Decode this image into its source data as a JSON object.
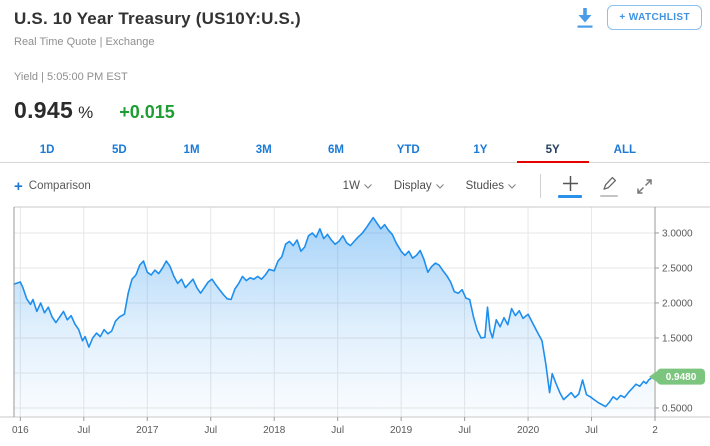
{
  "header": {
    "title": "U.S. 10 Year Treasury (US10Y:U.S.)",
    "subtitle": "Real Time Quote | Exchange",
    "watchlist_label": "+ WATCHLIST"
  },
  "quote": {
    "meta": "Yield | 5:05:00 PM EST",
    "price": "0.945",
    "unit": "%",
    "change": "+0.015"
  },
  "range_tabs": {
    "items": [
      "1D",
      "5D",
      "1M",
      "3M",
      "6M",
      "YTD",
      "1Y",
      "5Y",
      "ALL"
    ],
    "selected": "5Y"
  },
  "toolbar": {
    "comparison_plus": "+",
    "comparison_label": "Comparison",
    "interval_label": "1W",
    "display_label": "Display",
    "studies_label": "Studies",
    "tool_icons": [
      "crosshair-icon",
      "pencil-icon",
      "expand-icon"
    ]
  },
  "colors": {
    "accent_blue": "#1a7ad6",
    "line_blue": "#1f8fee",
    "tab_red": "#e60000",
    "change_green": "#1e9e32",
    "badge_green": "#7cc57e",
    "grid": "#e7e7e7",
    "axis_border_dark": "#9a9a9a",
    "axis_border_light": "#c9c9c9",
    "axis_text": "#595959"
  },
  "chart_data": {
    "type": "area",
    "title": "U.S. 10 Year Treasury yield, 5-year weekly chart",
    "x_domain": [
      2015.95,
      2021.0
    ],
    "y_domain": [
      0.371,
      3.371
    ],
    "grid": true,
    "legend": "none",
    "x_ticks": [
      {
        "year": 2016.0,
        "label": "016"
      },
      {
        "year": 2016.5,
        "label": "Jul"
      },
      {
        "year": 2017.0,
        "label": "2017"
      },
      {
        "year": 2017.5,
        "label": "Jul"
      },
      {
        "year": 2018.0,
        "label": "2018"
      },
      {
        "year": 2018.5,
        "label": "Jul"
      },
      {
        "year": 2019.0,
        "label": "2019"
      },
      {
        "year": 2019.5,
        "label": "Jul"
      },
      {
        "year": 2020.0,
        "label": "2020"
      },
      {
        "year": 2020.5,
        "label": "Jul"
      },
      {
        "year": 2021.0,
        "label": "2"
      }
    ],
    "y_ticks": [
      {
        "value": 3.0,
        "label": "3.0000"
      },
      {
        "value": 2.5,
        "label": "2.5000"
      },
      {
        "value": 2.0,
        "label": "2.0000"
      },
      {
        "value": 1.5,
        "label": "1.5000"
      },
      {
        "value": 1.0,
        "label": ""
      },
      {
        "value": 0.5,
        "label": "0.5000"
      }
    ],
    "last_price": {
      "value": 0.948,
      "label": "0.9480"
    },
    "series": [
      {
        "name": "US10Y yield",
        "points": [
          [
            2015.95,
            2.27
          ],
          [
            2016.0,
            2.3
          ],
          [
            2016.02,
            2.22
          ],
          [
            2016.05,
            2.06
          ],
          [
            2016.08,
            1.98
          ],
          [
            2016.1,
            2.05
          ],
          [
            2016.13,
            1.88
          ],
          [
            2016.16,
            2.0
          ],
          [
            2016.19,
            1.86
          ],
          [
            2016.22,
            1.94
          ],
          [
            2016.25,
            1.8
          ],
          [
            2016.28,
            1.72
          ],
          [
            2016.31,
            1.8
          ],
          [
            2016.34,
            1.88
          ],
          [
            2016.37,
            1.76
          ],
          [
            2016.4,
            1.82
          ],
          [
            2016.43,
            1.7
          ],
          [
            2016.46,
            1.62
          ],
          [
            2016.49,
            1.46
          ],
          [
            2016.51,
            1.52
          ],
          [
            2016.54,
            1.37
          ],
          [
            2016.57,
            1.5
          ],
          [
            2016.6,
            1.57
          ],
          [
            2016.63,
            1.52
          ],
          [
            2016.66,
            1.62
          ],
          [
            2016.69,
            1.56
          ],
          [
            2016.72,
            1.6
          ],
          [
            2016.75,
            1.74
          ],
          [
            2016.78,
            1.8
          ],
          [
            2016.82,
            1.84
          ],
          [
            2016.85,
            2.14
          ],
          [
            2016.88,
            2.34
          ],
          [
            2016.91,
            2.4
          ],
          [
            2016.94,
            2.54
          ],
          [
            2016.97,
            2.6
          ],
          [
            2017.0,
            2.44
          ],
          [
            2017.03,
            2.4
          ],
          [
            2017.06,
            2.47
          ],
          [
            2017.09,
            2.42
          ],
          [
            2017.12,
            2.5
          ],
          [
            2017.15,
            2.6
          ],
          [
            2017.18,
            2.52
          ],
          [
            2017.21,
            2.38
          ],
          [
            2017.24,
            2.28
          ],
          [
            2017.27,
            2.34
          ],
          [
            2017.3,
            2.22
          ],
          [
            2017.33,
            2.28
          ],
          [
            2017.36,
            2.34
          ],
          [
            2017.39,
            2.22
          ],
          [
            2017.42,
            2.14
          ],
          [
            2017.45,
            2.22
          ],
          [
            2017.48,
            2.3
          ],
          [
            2017.51,
            2.34
          ],
          [
            2017.54,
            2.26
          ],
          [
            2017.57,
            2.19
          ],
          [
            2017.6,
            2.12
          ],
          [
            2017.63,
            2.06
          ],
          [
            2017.66,
            2.05
          ],
          [
            2017.69,
            2.2
          ],
          [
            2017.72,
            2.28
          ],
          [
            2017.75,
            2.38
          ],
          [
            2017.78,
            2.32
          ],
          [
            2017.81,
            2.36
          ],
          [
            2017.84,
            2.34
          ],
          [
            2017.87,
            2.38
          ],
          [
            2017.9,
            2.34
          ],
          [
            2017.93,
            2.4
          ],
          [
            2017.96,
            2.48
          ],
          [
            2018.0,
            2.46
          ],
          [
            2018.03,
            2.6
          ],
          [
            2018.06,
            2.66
          ],
          [
            2018.09,
            2.84
          ],
          [
            2018.12,
            2.88
          ],
          [
            2018.15,
            2.82
          ],
          [
            2018.18,
            2.9
          ],
          [
            2018.21,
            2.74
          ],
          [
            2018.24,
            2.8
          ],
          [
            2018.27,
            2.96
          ],
          [
            2018.3,
            3.0
          ],
          [
            2018.33,
            2.94
          ],
          [
            2018.36,
            3.06
          ],
          [
            2018.39,
            2.92
          ],
          [
            2018.42,
            2.98
          ],
          [
            2018.45,
            2.9
          ],
          [
            2018.48,
            2.84
          ],
          [
            2018.51,
            2.88
          ],
          [
            2018.54,
            2.96
          ],
          [
            2018.57,
            2.86
          ],
          [
            2018.6,
            2.82
          ],
          [
            2018.63,
            2.88
          ],
          [
            2018.66,
            2.94
          ],
          [
            2018.69,
            2.99
          ],
          [
            2018.72,
            3.06
          ],
          [
            2018.75,
            3.14
          ],
          [
            2018.78,
            3.22
          ],
          [
            2018.81,
            3.14
          ],
          [
            2018.84,
            3.06
          ],
          [
            2018.87,
            3.12
          ],
          [
            2018.9,
            3.04
          ],
          [
            2018.93,
            2.98
          ],
          [
            2018.96,
            2.86
          ],
          [
            2019.0,
            2.74
          ],
          [
            2019.03,
            2.68
          ],
          [
            2019.06,
            2.74
          ],
          [
            2019.09,
            2.64
          ],
          [
            2019.12,
            2.68
          ],
          [
            2019.15,
            2.75
          ],
          [
            2019.18,
            2.62
          ],
          [
            2019.21,
            2.44
          ],
          [
            2019.24,
            2.52
          ],
          [
            2019.27,
            2.57
          ],
          [
            2019.3,
            2.54
          ],
          [
            2019.33,
            2.46
          ],
          [
            2019.36,
            2.39
          ],
          [
            2019.39,
            2.3
          ],
          [
            2019.42,
            2.16
          ],
          [
            2019.45,
            2.14
          ],
          [
            2019.48,
            2.19
          ],
          [
            2019.51,
            2.07
          ],
          [
            2019.54,
            2.05
          ],
          [
            2019.57,
            1.8
          ],
          [
            2019.6,
            1.61
          ],
          [
            2019.63,
            1.5
          ],
          [
            2019.66,
            1.51
          ],
          [
            2019.68,
            1.94
          ],
          [
            2019.7,
            1.61
          ],
          [
            2019.72,
            1.5
          ],
          [
            2019.75,
            1.76
          ],
          [
            2019.78,
            1.66
          ],
          [
            2019.81,
            1.79
          ],
          [
            2019.84,
            1.69
          ],
          [
            2019.87,
            1.92
          ],
          [
            2019.9,
            1.82
          ],
          [
            2019.93,
            1.89
          ],
          [
            2019.96,
            1.78
          ],
          [
            2020.0,
            1.84
          ],
          [
            2020.04,
            1.7
          ],
          [
            2020.08,
            1.56
          ],
          [
            2020.11,
            1.46
          ],
          [
            2020.14,
            1.13
          ],
          [
            2020.17,
            0.72
          ],
          [
            2020.19,
            0.99
          ],
          [
            2020.22,
            0.85
          ],
          [
            2020.25,
            0.72
          ],
          [
            2020.28,
            0.62
          ],
          [
            2020.31,
            0.67
          ],
          [
            2020.34,
            0.72
          ],
          [
            2020.37,
            0.65
          ],
          [
            2020.4,
            0.7
          ],
          [
            2020.43,
            0.9
          ],
          [
            2020.46,
            0.69
          ],
          [
            2020.49,
            0.66
          ],
          [
            2020.52,
            0.62
          ],
          [
            2020.55,
            0.58
          ],
          [
            2020.58,
            0.55
          ],
          [
            2020.61,
            0.52
          ],
          [
            2020.64,
            0.58
          ],
          [
            2020.67,
            0.66
          ],
          [
            2020.7,
            0.62
          ],
          [
            2020.73,
            0.68
          ],
          [
            2020.76,
            0.65
          ],
          [
            2020.79,
            0.72
          ],
          [
            2020.82,
            0.78
          ],
          [
            2020.85,
            0.84
          ],
          [
            2020.88,
            0.81
          ],
          [
            2020.91,
            0.88
          ],
          [
            2020.93,
            0.85
          ],
          [
            2020.95,
            0.9
          ],
          [
            2020.97,
            0.93
          ],
          [
            2020.99,
            0.948
          ]
        ]
      }
    ]
  }
}
